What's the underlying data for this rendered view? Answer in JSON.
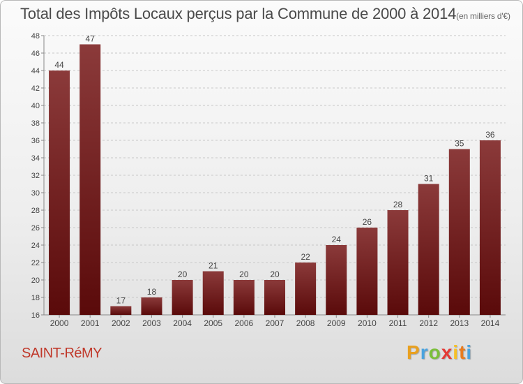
{
  "chart_data": {
    "type": "bar",
    "title": "Total des Impôts Locaux perçus par la Commune de 2000 à 2014",
    "unit_note": "(en milliers d'€)",
    "categories": [
      "2000",
      "2001",
      "2002",
      "2003",
      "2004",
      "2005",
      "2006",
      "2007",
      "2008",
      "2009",
      "2010",
      "2011",
      "2012",
      "2013",
      "2014"
    ],
    "values": [
      44,
      47,
      17,
      18,
      20,
      21,
      20,
      20,
      22,
      24,
      26,
      28,
      31,
      35,
      36
    ],
    "ylim": [
      16,
      48
    ],
    "yticks": [
      16,
      18,
      20,
      22,
      24,
      26,
      28,
      30,
      32,
      34,
      36,
      38,
      40,
      42,
      44,
      46,
      48
    ],
    "xlabel": "",
    "ylabel": "",
    "grid": true,
    "bar_color_top": "#8b3a3a",
    "bar_color_bottom": "#5a0a0a"
  },
  "footer": {
    "commune": "SAINT-RéMY",
    "logo_letters": [
      "P",
      "r",
      "o",
      "x",
      "i",
      "t",
      "i"
    ],
    "logo_colors": [
      "#e8a020",
      "#4aa3df",
      "#7bbf3a",
      "#e53935",
      "#f6c026",
      "#e87c20",
      "#4aa3df"
    ]
  }
}
